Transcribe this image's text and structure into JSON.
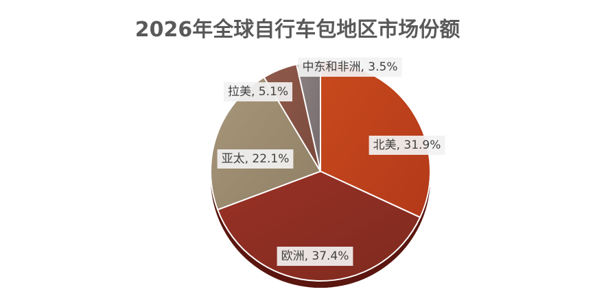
{
  "chart_data": {
    "type": "pie",
    "title": "2026年全球自行车包地区市场份额",
    "slices": [
      {
        "label": "北美",
        "value": 31.9,
        "display": "北美, 31.9%",
        "color": "#c84a1c",
        "color_dark": "#b3391a"
      },
      {
        "label": "欧洲",
        "value": 37.4,
        "display": "欧洲, 37.4%",
        "color": "#993126",
        "color_dark": "#7f2a1f"
      },
      {
        "label": "亚太",
        "value": 22.1,
        "display": "亚太, 22.1%",
        "color": "#a8977b",
        "color_dark": "#8f7f64"
      },
      {
        "label": "拉美",
        "value": 5.1,
        "display": "拉美, 5.1%",
        "color": "#8f5a4b",
        "color_dark": "#7a4a3d"
      },
      {
        "label": "中东和非洲",
        "value": 3.5,
        "display": "中东和非洲, 3.5%",
        "color": "#8c8283",
        "color_dark": "#756b6c"
      }
    ],
    "legend": "none"
  }
}
